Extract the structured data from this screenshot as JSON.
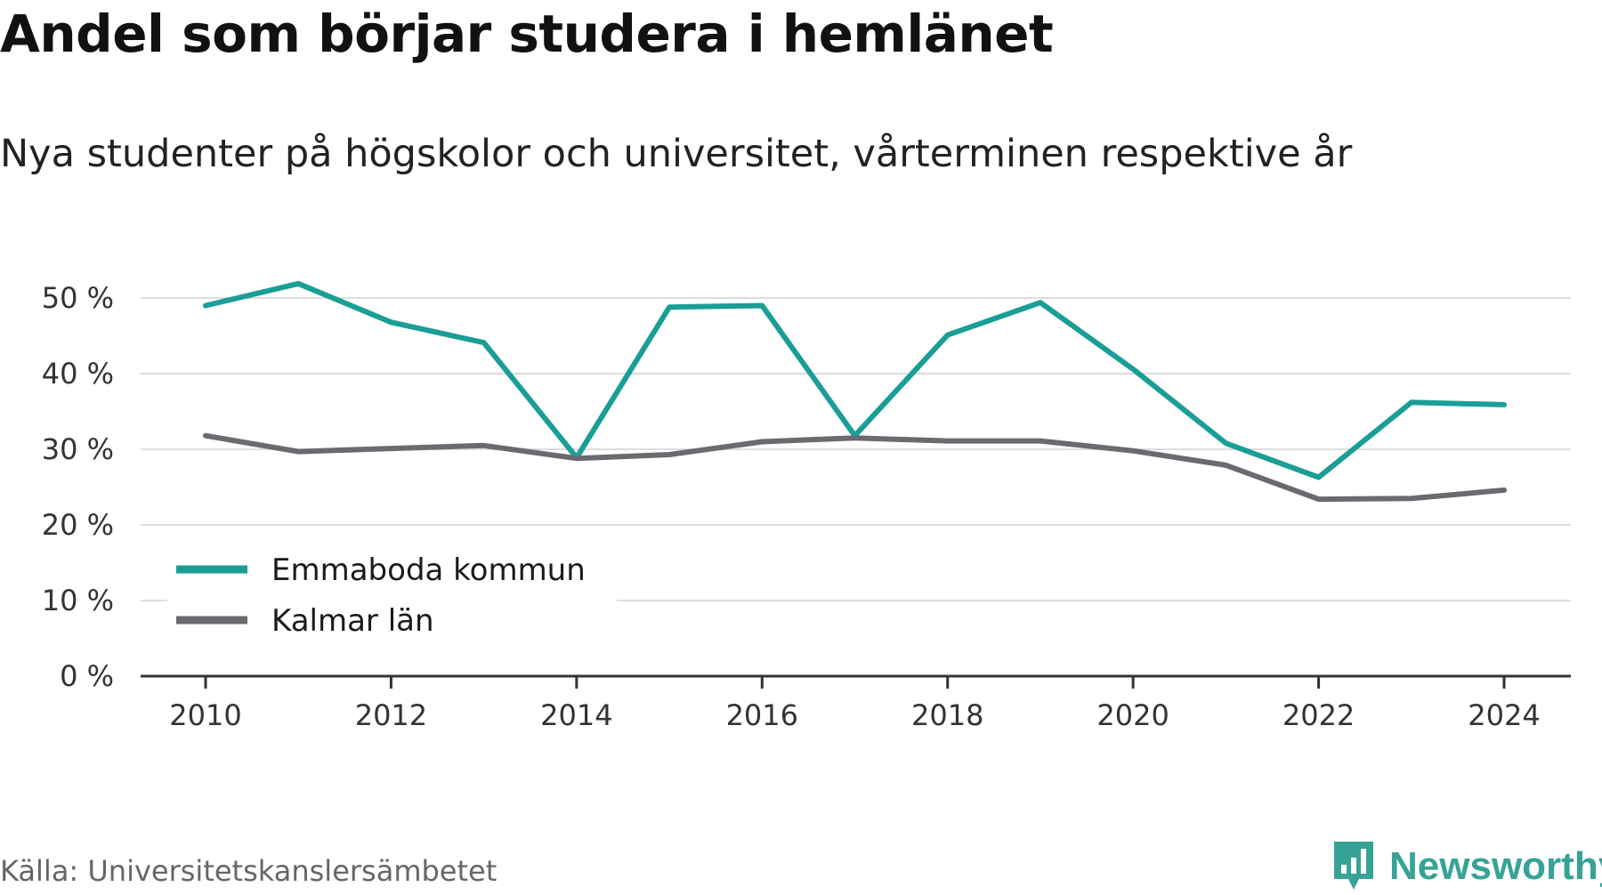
{
  "header": {
    "title": "Andel som börjar studera i hemlänet",
    "subtitle": "Nya studenter på högskolor och universitet, vårterminen respektive år"
  },
  "footer": {
    "source": "Källa: Universitetskanslersämbetet",
    "brand": "Newsworthy",
    "brand_icon": "bar-chart-speech-bubble-icon"
  },
  "colors": {
    "emmaboda": "#1a9e96",
    "kalmar": "#6b6a70",
    "grid": "#dddddd",
    "axis": "#333333",
    "brand": "#36a396"
  },
  "chart_data": {
    "type": "line",
    "x": [
      2010,
      2011,
      2012,
      2013,
      2014,
      2015,
      2016,
      2017,
      2018,
      2019,
      2020,
      2021,
      2022,
      2023,
      2024
    ],
    "series": [
      {
        "name": "Emmaboda kommun",
        "color": "#1a9e96",
        "values": [
          49,
          51.9,
          46.8,
          44.1,
          28.9,
          48.8,
          49,
          31.8,
          45.1,
          49.4,
          40.6,
          30.8,
          26.3,
          36.2,
          35.9
        ]
      },
      {
        "name": "Kalmar län",
        "color": "#6b6a70",
        "values": [
          31.8,
          29.7,
          30.1,
          30.5,
          28.8,
          29.3,
          31,
          31.5,
          31.1,
          31.1,
          29.8,
          27.9,
          23.4,
          23.5,
          24.6
        ]
      }
    ],
    "xticks": [
      2010,
      2012,
      2014,
      2016,
      2018,
      2020,
      2022,
      2024
    ],
    "xtick_labels": [
      "2010",
      "2012",
      "2014",
      "2016",
      "2018",
      "2020",
      "2022",
      "2024"
    ],
    "yticks": [
      0,
      10,
      20,
      30,
      40,
      50
    ],
    "ytick_labels": [
      "0 %",
      "10 %",
      "20 %",
      "30 %",
      "40 %",
      "50 %"
    ],
    "ylim": [
      0,
      50
    ],
    "xlim": [
      2010,
      2024
    ],
    "grid": true,
    "legend": "bottom-left",
    "xlabel": "",
    "ylabel": ""
  }
}
